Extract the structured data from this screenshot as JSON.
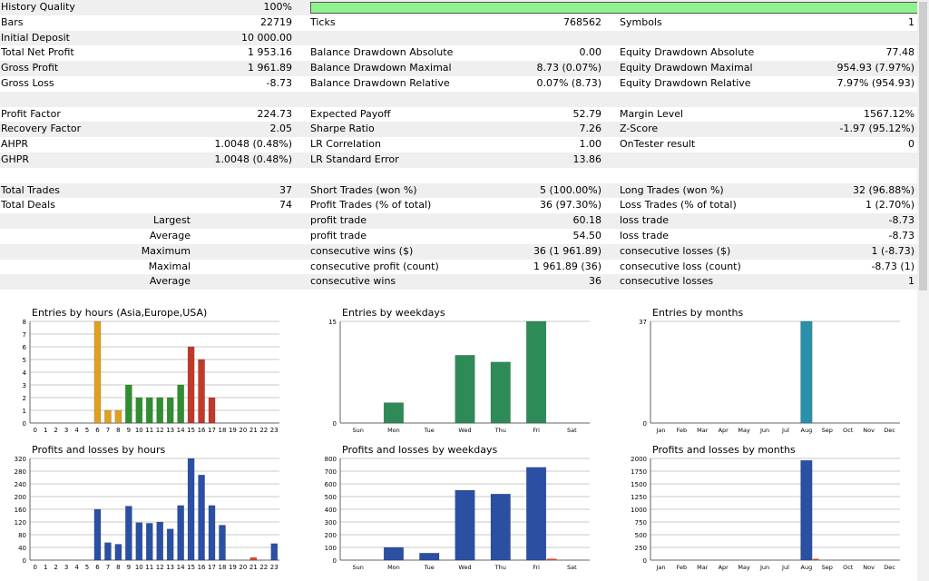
{
  "stats": {
    "rows": [
      {
        "cells": [
          {
            "t": "History Quality"
          },
          {
            "t": "100%",
            "v": 1
          },
          {
            "bar": 1,
            "fraction": 1.0
          },
          {
            "t": ""
          },
          {
            "t": ""
          },
          {
            "t": ""
          }
        ]
      },
      {
        "cells": [
          {
            "t": "Bars"
          },
          {
            "t": "22719",
            "v": 1
          },
          {
            "t": "Ticks"
          },
          {
            "t": "768562",
            "v": 1
          },
          {
            "t": "Symbols"
          },
          {
            "t": "1",
            "v": 1
          }
        ]
      },
      {
        "cells": [
          {
            "t": "Initial Deposit"
          },
          {
            "t": "10 000.00",
            "v": 1
          },
          {
            "t": ""
          },
          {
            "t": ""
          },
          {
            "t": ""
          },
          {
            "t": ""
          }
        ]
      },
      {
        "cells": [
          {
            "t": "Total Net Profit"
          },
          {
            "t": "1 953.16",
            "v": 1
          },
          {
            "t": "Balance Drawdown Absolute"
          },
          {
            "t": "0.00",
            "v": 1
          },
          {
            "t": "Equity Drawdown Absolute"
          },
          {
            "t": "77.48",
            "v": 1
          }
        ]
      },
      {
        "cells": [
          {
            "t": "Gross Profit"
          },
          {
            "t": "1 961.89",
            "v": 1
          },
          {
            "t": "Balance Drawdown Maximal"
          },
          {
            "t": "8.73 (0.07%)",
            "v": 1
          },
          {
            "t": "Equity Drawdown Maximal"
          },
          {
            "t": "954.93 (7.97%)",
            "v": 1
          }
        ]
      },
      {
        "cells": [
          {
            "t": "Gross Loss"
          },
          {
            "t": "-8.73",
            "v": 1
          },
          {
            "t": "Balance Drawdown Relative"
          },
          {
            "t": "0.07% (8.73)",
            "v": 1
          },
          {
            "t": "Equity Drawdown Relative"
          },
          {
            "t": "7.97% (954.93)",
            "v": 1
          }
        ]
      },
      {
        "cells": [
          {
            "t": ""
          },
          {
            "t": ""
          },
          {
            "t": ""
          },
          {
            "t": ""
          },
          {
            "t": ""
          },
          {
            "t": ""
          }
        ]
      },
      {
        "cells": [
          {
            "t": "Profit Factor"
          },
          {
            "t": "224.73",
            "v": 1
          },
          {
            "t": "Expected Payoff"
          },
          {
            "t": "52.79",
            "v": 1
          },
          {
            "t": "Margin Level"
          },
          {
            "t": "1567.12%",
            "v": 1
          }
        ]
      },
      {
        "cells": [
          {
            "t": "Recovery Factor"
          },
          {
            "t": "2.05",
            "v": 1
          },
          {
            "t": "Sharpe Ratio"
          },
          {
            "t": "7.26",
            "v": 1
          },
          {
            "t": "Z-Score"
          },
          {
            "t": "-1.97 (95.12%)",
            "v": 1
          }
        ]
      },
      {
        "cells": [
          {
            "t": "AHPR"
          },
          {
            "t": "1.0048 (0.48%)",
            "v": 1
          },
          {
            "t": "LR Correlation"
          },
          {
            "t": "1.00",
            "v": 1
          },
          {
            "t": "OnTester result"
          },
          {
            "t": "0",
            "v": 1
          }
        ]
      },
      {
        "cells": [
          {
            "t": "GHPR"
          },
          {
            "t": "1.0048 (0.48%)",
            "v": 1
          },
          {
            "t": "LR Standard Error"
          },
          {
            "t": "13.86",
            "v": 1
          },
          {
            "t": ""
          },
          {
            "t": ""
          }
        ]
      },
      {
        "cells": [
          {
            "t": ""
          },
          {
            "t": ""
          },
          {
            "t": ""
          },
          {
            "t": ""
          },
          {
            "t": ""
          },
          {
            "t": ""
          }
        ]
      },
      {
        "cells": [
          {
            "t": "Total Trades"
          },
          {
            "t": "37",
            "v": 1
          },
          {
            "t": "Short Trades (won %)"
          },
          {
            "t": "5 (100.00%)",
            "v": 1
          },
          {
            "t": "Long Trades (won %)"
          },
          {
            "t": "32 (96.88%)",
            "v": 1
          }
        ]
      },
      {
        "cells": [
          {
            "t": "Total Deals"
          },
          {
            "t": "74",
            "v": 1
          },
          {
            "t": "Profit Trades (% of total)"
          },
          {
            "t": "36 (97.30%)",
            "v": 1
          },
          {
            "t": "Loss Trades (% of total)"
          },
          {
            "t": "1 (2.70%)",
            "v": 1
          }
        ]
      },
      {
        "cells": [
          {
            "t": "Largest",
            "lr": 1
          },
          {
            "t": ""
          },
          {
            "t": "profit trade"
          },
          {
            "t": "60.18",
            "v": 1
          },
          {
            "t": "loss trade"
          },
          {
            "t": "-8.73",
            "v": 1
          }
        ]
      },
      {
        "cells": [
          {
            "t": "Average",
            "lr": 1
          },
          {
            "t": ""
          },
          {
            "t": "profit trade"
          },
          {
            "t": "54.50",
            "v": 1
          },
          {
            "t": "loss trade"
          },
          {
            "t": "-8.73",
            "v": 1
          }
        ]
      },
      {
        "cells": [
          {
            "t": "Maximum",
            "lr": 1
          },
          {
            "t": ""
          },
          {
            "t": "consecutive wins ($)"
          },
          {
            "t": "36 (1 961.89)",
            "v": 1
          },
          {
            "t": "consecutive losses ($)"
          },
          {
            "t": "1 (-8.73)",
            "v": 1
          }
        ]
      },
      {
        "cells": [
          {
            "t": "Maximal",
            "lr": 1
          },
          {
            "t": ""
          },
          {
            "t": "consecutive profit (count)"
          },
          {
            "t": "1 961.89 (36)",
            "v": 1
          },
          {
            "t": "consecutive loss (count)"
          },
          {
            "t": "-8.73 (1)",
            "v": 1
          }
        ]
      },
      {
        "cells": [
          {
            "t": "Average",
            "lr": 1
          },
          {
            "t": ""
          },
          {
            "t": "consecutive wins"
          },
          {
            "t": "36",
            "v": 1
          },
          {
            "t": "consecutive losses"
          },
          {
            "t": "1",
            "v": 1
          }
        ]
      },
      {
        "cells": [
          {
            "t": ""
          },
          {
            "t": ""
          },
          {
            "t": ""
          },
          {
            "t": ""
          },
          {
            "t": ""
          },
          {
            "t": ""
          }
        ]
      }
    ]
  },
  "chart_data": [
    {
      "id": "entries-hours",
      "type": "bar",
      "title": "Entries by hours (Asia,Europe,USA)",
      "categories": [
        "0",
        "1",
        "2",
        "3",
        "4",
        "5",
        "6",
        "7",
        "8",
        "9",
        "10",
        "11",
        "12",
        "13",
        "14",
        "15",
        "16",
        "17",
        "18",
        "19",
        "20",
        "21",
        "22",
        "23"
      ],
      "values": [
        0,
        0,
        0,
        0,
        0,
        0,
        8,
        1,
        1,
        3,
        2,
        2,
        2,
        2,
        3,
        6,
        5,
        2,
        0,
        0,
        0,
        0,
        0,
        0
      ],
      "colors": [
        "",
        "",
        "",
        "",
        "",
        "",
        "#e0a020",
        "#e0a020",
        "#e0a020",
        "#2f8f2f",
        "#2f8f2f",
        "#2f8f2f",
        "#2f8f2f",
        "#2f8f2f",
        "#2f8f2f",
        "#c0392b",
        "#c0392b",
        "#c0392b",
        "",
        "",
        "",
        "",
        "",
        ""
      ],
      "yticks": [
        0,
        1,
        2,
        3,
        4,
        5,
        6,
        7,
        8
      ],
      "ylim": [
        0,
        8
      ]
    },
    {
      "id": "entries-weekdays",
      "type": "bar",
      "title": "Entries by weekdays",
      "categories": [
        "Sun",
        "Mon",
        "Tue",
        "Wed",
        "Thu",
        "Fri",
        "Sat"
      ],
      "values": [
        0,
        3,
        0,
        10,
        9,
        15,
        0
      ],
      "colors": [
        "#2e8b57",
        "#2e8b57",
        "#2e8b57",
        "#2e8b57",
        "#2e8b57",
        "#2e8b57",
        "#2e8b57"
      ],
      "yticks": [
        0,
        15
      ],
      "ylim": [
        0,
        15
      ]
    },
    {
      "id": "entries-months",
      "type": "bar",
      "title": "Entries by months",
      "categories": [
        "Jan",
        "Feb",
        "Mar",
        "Apr",
        "May",
        "Jun",
        "Jul",
        "Aug",
        "Sep",
        "Oct",
        "Nov",
        "Dec"
      ],
      "values": [
        0,
        0,
        0,
        0,
        0,
        0,
        0,
        37,
        0,
        0,
        0,
        0
      ],
      "colors": [
        "#2a8fa8",
        "#2a8fa8",
        "#2a8fa8",
        "#2a8fa8",
        "#2a8fa8",
        "#2a8fa8",
        "#2a8fa8",
        "#2a8fa8",
        "#2a8fa8",
        "#2a8fa8",
        "#2a8fa8",
        "#2a8fa8"
      ],
      "yticks": [
        0,
        37
      ],
      "ylim": [
        0,
        37
      ]
    },
    {
      "id": "pl-hours",
      "type": "bar",
      "title": "Profits and losses by hours",
      "categories": [
        "0",
        "1",
        "2",
        "3",
        "4",
        "5",
        "6",
        "7",
        "8",
        "9",
        "10",
        "11",
        "12",
        "13",
        "14",
        "15",
        "16",
        "17",
        "18",
        "19",
        "20",
        "21",
        "22",
        "23"
      ],
      "values": [
        0,
        0,
        0,
        0,
        0,
        0,
        160,
        55,
        50,
        170,
        118,
        116,
        120,
        98,
        172,
        320,
        268,
        172,
        110,
        0,
        0,
        8,
        0,
        52
      ],
      "colors": [
        "",
        "",
        "",
        "",
        "",
        "",
        "#2b4fa3",
        "#2b4fa3",
        "#2b4fa3",
        "#2b4fa3",
        "#2b4fa3",
        "#2b4fa3",
        "#2b4fa3",
        "#2b4fa3",
        "#2b4fa3",
        "#2b4fa3",
        "#2b4fa3",
        "#2b4fa3",
        "#2b4fa3",
        "",
        "",
        "#e04020",
        "",
        "#2b4fa3"
      ],
      "yticks": [
        0,
        40,
        80,
        120,
        160,
        200,
        240,
        280,
        320
      ],
      "ylim": [
        0,
        320
      ]
    },
    {
      "id": "pl-weekdays",
      "type": "bar",
      "title": "Profits and losses by weekdays",
      "categories": [
        "Sun",
        "Mon",
        "Tue",
        "Wed",
        "Thu",
        "Fri",
        "Sat"
      ],
      "values": [
        0,
        100,
        55,
        550,
        520,
        730,
        0
      ],
      "colors": [
        "#2b4fa3",
        "#2b4fa3",
        "#2b4fa3",
        "#2b4fa3",
        "#2b4fa3",
        "#2b4fa3",
        "#2b4fa3"
      ],
      "extra": {
        "index": 5,
        "value": 9,
        "color": "#e04020"
      },
      "yticks": [
        0,
        100,
        200,
        300,
        400,
        500,
        600,
        700,
        800
      ],
      "ylim": [
        0,
        800
      ]
    },
    {
      "id": "pl-months",
      "type": "bar",
      "title": "Profits and losses by months",
      "categories": [
        "Jan",
        "Feb",
        "Mar",
        "Apr",
        "May",
        "Jun",
        "Jul",
        "Aug",
        "Sep",
        "Oct",
        "Nov",
        "Dec"
      ],
      "values": [
        0,
        0,
        0,
        0,
        0,
        0,
        0,
        1962,
        0,
        0,
        0,
        0
      ],
      "colors": [
        "#2b4fa3",
        "#2b4fa3",
        "#2b4fa3",
        "#2b4fa3",
        "#2b4fa3",
        "#2b4fa3",
        "#2b4fa3",
        "#2b4fa3",
        "#2b4fa3",
        "#2b4fa3",
        "#2b4fa3",
        "#2b4fa3"
      ],
      "extra": {
        "index": 7,
        "value": 9,
        "color": "#e04020"
      },
      "yticks": [
        0,
        250,
        500,
        750,
        1000,
        1250,
        1500,
        1750,
        2000
      ],
      "ylim": [
        0,
        2000
      ]
    }
  ]
}
